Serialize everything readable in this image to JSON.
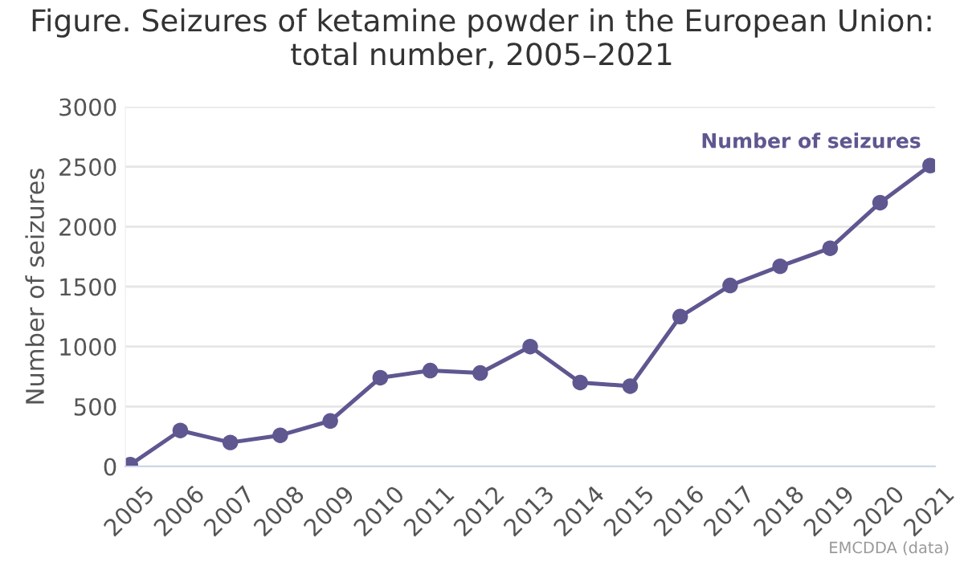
{
  "chart_data": {
    "type": "line",
    "title": "Figure. Seizures of ketamine powder in the European Union:\ntotal number, 2005–2021",
    "ylabel": "Number of seizures",
    "categories": [
      "2005",
      "2006",
      "2007",
      "2008",
      "2009",
      "2010",
      "2011",
      "2012",
      "2013",
      "2014",
      "2015",
      "2016",
      "2017",
      "2018",
      "2019",
      "2020",
      "2021"
    ],
    "series": [
      {
        "name": "Number of seizures",
        "color": "#5e5790",
        "values": [
          15,
          300,
          200,
          260,
          380,
          740,
          800,
          780,
          1000,
          700,
          670,
          1250,
          1510,
          1670,
          1820,
          2200,
          2510
        ]
      }
    ],
    "ylim": [
      0,
      3000
    ],
    "yticks": [
      0,
      500,
      1000,
      1500,
      2000,
      2500,
      3000
    ],
    "grid": "y",
    "marker": "circle",
    "line_style": "solid",
    "annotations": [
      "EMCDDA (data)"
    ]
  }
}
